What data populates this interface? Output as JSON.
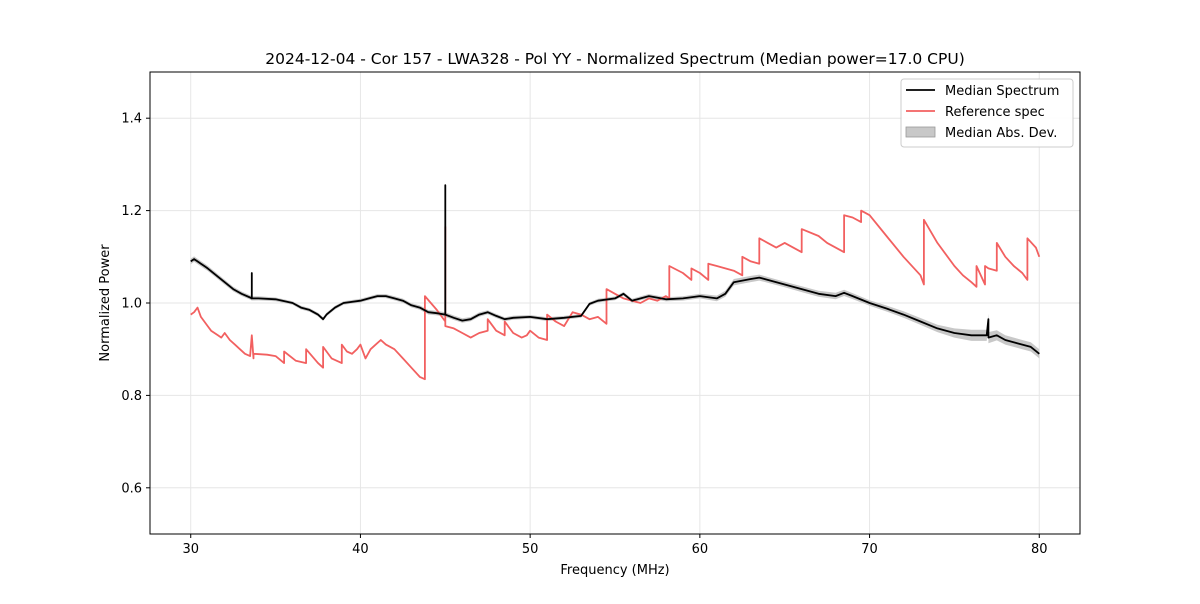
{
  "chart_data": {
    "type": "line",
    "title": "2024-12-04 - Cor 157 - LWA328 - Pol YY - Normalized Spectrum (Median power=17.0 CPU)",
    "xlabel": "Frequency (MHz)",
    "ylabel": "Normalized Power",
    "xlim": [
      27.6,
      82.4
    ],
    "ylim": [
      0.5,
      1.5
    ],
    "grid": true,
    "legend_position": "top-right",
    "x_ticks": [
      30,
      40,
      50,
      60,
      70,
      80
    ],
    "y_ticks": [
      0.6,
      0.8,
      1.0,
      1.2,
      1.4
    ],
    "x_tick_labels": [
      "30",
      "40",
      "50",
      "60",
      "70",
      "80"
    ],
    "y_tick_labels": [
      "0.6",
      "0.8",
      "1.0",
      "1.2",
      "1.4"
    ],
    "colors": {
      "median": "#000000",
      "reference": "#f26060",
      "mad_fill": "#c8c8c8",
      "grid": "#e6e6e6"
    },
    "legend": [
      "Median Spectrum",
      "Reference spec",
      "Median Abs. Dev."
    ],
    "series": [
      {
        "name": "Median Spectrum",
        "x": [
          30.0,
          30.2,
          30.4,
          30.6,
          30.8,
          31.0,
          31.5,
          32.0,
          32.5,
          33.0,
          33.5,
          33.6,
          33.6,
          33.6,
          34.0,
          35.0,
          36.0,
          36.5,
          37.0,
          37.5,
          37.8,
          38.0,
          38.5,
          39.0,
          40.0,
          40.5,
          41.0,
          41.5,
          42.0,
          42.5,
          43.0,
          43.5,
          44.0,
          44.5,
          45.0,
          45.0,
          45.0,
          45.5,
          46.0,
          46.5,
          47.0,
          47.5,
          48.0,
          48.5,
          49.0,
          50.0,
          51.0,
          52.0,
          53.0,
          53.5,
          54.0,
          55.0,
          55.5,
          56.0,
          57.0,
          58.0,
          59.0,
          60.0,
          61.0,
          61.5,
          62.0,
          63.0,
          63.5,
          64.0,
          65.0,
          66.0,
          67.0,
          68.0,
          68.5,
          69.0,
          70.0,
          71.0,
          72.0,
          73.0,
          74.0,
          75.0,
          76.0,
          76.9,
          77.0,
          77.0,
          77.5,
          78.0,
          79.0,
          79.5,
          80.0
        ],
        "values": [
          1.09,
          1.095,
          1.09,
          1.085,
          1.08,
          1.075,
          1.06,
          1.045,
          1.03,
          1.02,
          1.012,
          1.01,
          1.065,
          1.01,
          1.01,
          1.008,
          1.0,
          0.99,
          0.985,
          0.975,
          0.965,
          0.975,
          0.99,
          1.0,
          1.005,
          1.01,
          1.015,
          1.015,
          1.01,
          1.005,
          0.995,
          0.99,
          0.98,
          0.978,
          0.975,
          1.255,
          0.975,
          0.968,
          0.962,
          0.965,
          0.975,
          0.98,
          0.972,
          0.965,
          0.968,
          0.97,
          0.965,
          0.968,
          0.972,
          0.998,
          1.005,
          1.01,
          1.02,
          1.005,
          1.015,
          1.008,
          1.01,
          1.015,
          1.01,
          1.02,
          1.045,
          1.052,
          1.055,
          1.05,
          1.04,
          1.03,
          1.02,
          1.015,
          1.022,
          1.015,
          1.0,
          0.988,
          0.975,
          0.96,
          0.945,
          0.935,
          0.93,
          0.93,
          0.965,
          0.925,
          0.93,
          0.92,
          0.91,
          0.905,
          0.89
        ]
      },
      {
        "name": "Reference spec",
        "x": [
          30.0,
          30.2,
          30.4,
          30.6,
          30.8,
          31.0,
          31.2,
          31.4,
          31.6,
          31.8,
          32.0,
          32.3,
          32.6,
          32.9,
          33.2,
          33.5,
          33.6,
          33.7,
          33.7,
          34.5,
          35.0,
          35.5,
          35.5,
          36.2,
          36.8,
          36.8,
          37.5,
          37.8,
          37.8,
          38.3,
          38.9,
          38.9,
          39.2,
          39.5,
          39.8,
          40.0,
          40.3,
          40.6,
          40.9,
          41.2,
          41.5,
          42.0,
          42.5,
          43.0,
          43.5,
          43.8,
          43.8,
          44.5,
          45.0,
          45.0,
          45.0,
          45.5,
          46.0,
          46.5,
          47.0,
          47.5,
          47.5,
          48.0,
          48.5,
          48.5,
          49.0,
          49.5,
          49.8,
          50.0,
          50.5,
          51.0,
          51.0,
          51.5,
          52.0,
          52.5,
          53.0,
          53.5,
          54.0,
          54.5,
          54.5,
          55.0,
          55.5,
          56.0,
          56.5,
          57.0,
          57.5,
          58.0,
          58.2,
          58.2,
          59.0,
          59.5,
          59.5,
          60.0,
          60.5,
          60.5,
          61.0,
          61.5,
          62.0,
          62.5,
          62.5,
          63.0,
          63.5,
          63.5,
          64.0,
          64.5,
          65.0,
          65.5,
          66.0,
          66.0,
          67.0,
          67.5,
          68.0,
          68.5,
          68.5,
          69.0,
          69.5,
          69.5,
          70.0,
          71.0,
          72.0,
          73.0,
          73.2,
          73.2,
          74.0,
          75.0,
          75.5,
          76.0,
          76.3,
          76.3,
          76.8,
          76.8,
          77.0,
          77.5,
          77.5,
          78.0,
          78.5,
          79.0,
          79.3,
          79.3,
          79.8,
          80.0
        ],
        "values": [
          0.975,
          0.98,
          0.99,
          0.97,
          0.96,
          0.95,
          0.94,
          0.935,
          0.93,
          0.925,
          0.935,
          0.92,
          0.91,
          0.9,
          0.89,
          0.885,
          0.93,
          0.88,
          0.89,
          0.888,
          0.885,
          0.87,
          0.895,
          0.875,
          0.87,
          0.9,
          0.87,
          0.86,
          0.905,
          0.88,
          0.87,
          0.91,
          0.895,
          0.89,
          0.9,
          0.91,
          0.88,
          0.9,
          0.91,
          0.92,
          0.91,
          0.9,
          0.88,
          0.86,
          0.84,
          0.835,
          1.015,
          0.985,
          0.96,
          1.165,
          0.95,
          0.945,
          0.935,
          0.925,
          0.935,
          0.94,
          0.965,
          0.94,
          0.93,
          0.96,
          0.935,
          0.925,
          0.93,
          0.94,
          0.925,
          0.92,
          0.975,
          0.96,
          0.95,
          0.98,
          0.975,
          0.965,
          0.97,
          0.955,
          1.03,
          1.02,
          1.01,
          1.005,
          1.0,
          1.01,
          1.005,
          1.015,
          1.01,
          1.08,
          1.065,
          1.05,
          1.075,
          1.065,
          1.05,
          1.085,
          1.08,
          1.075,
          1.07,
          1.06,
          1.1,
          1.09,
          1.085,
          1.14,
          1.13,
          1.12,
          1.13,
          1.12,
          1.11,
          1.16,
          1.145,
          1.13,
          1.12,
          1.11,
          1.19,
          1.185,
          1.175,
          1.2,
          1.19,
          1.145,
          1.1,
          1.06,
          1.04,
          1.18,
          1.13,
          1.08,
          1.06,
          1.045,
          1.035,
          1.08,
          1.04,
          1.08,
          1.075,
          1.07,
          1.13,
          1.1,
          1.08,
          1.065,
          1.05,
          1.14,
          1.12,
          1.1
        ]
      },
      {
        "name": "Median Abs. Dev.",
        "x": [
          30.0,
          35.0,
          40.0,
          45.0,
          50.0,
          55.0,
          60.0,
          62.0,
          65.0,
          68.0,
          70.0,
          72.0,
          74.0,
          75.0,
          76.0,
          77.0,
          78.0,
          80.0
        ],
        "spread": [
          0.006,
          0.004,
          0.004,
          0.005,
          0.004,
          0.004,
          0.005,
          0.007,
          0.006,
          0.007,
          0.006,
          0.007,
          0.008,
          0.01,
          0.012,
          0.012,
          0.01,
          0.01
        ]
      }
    ]
  }
}
